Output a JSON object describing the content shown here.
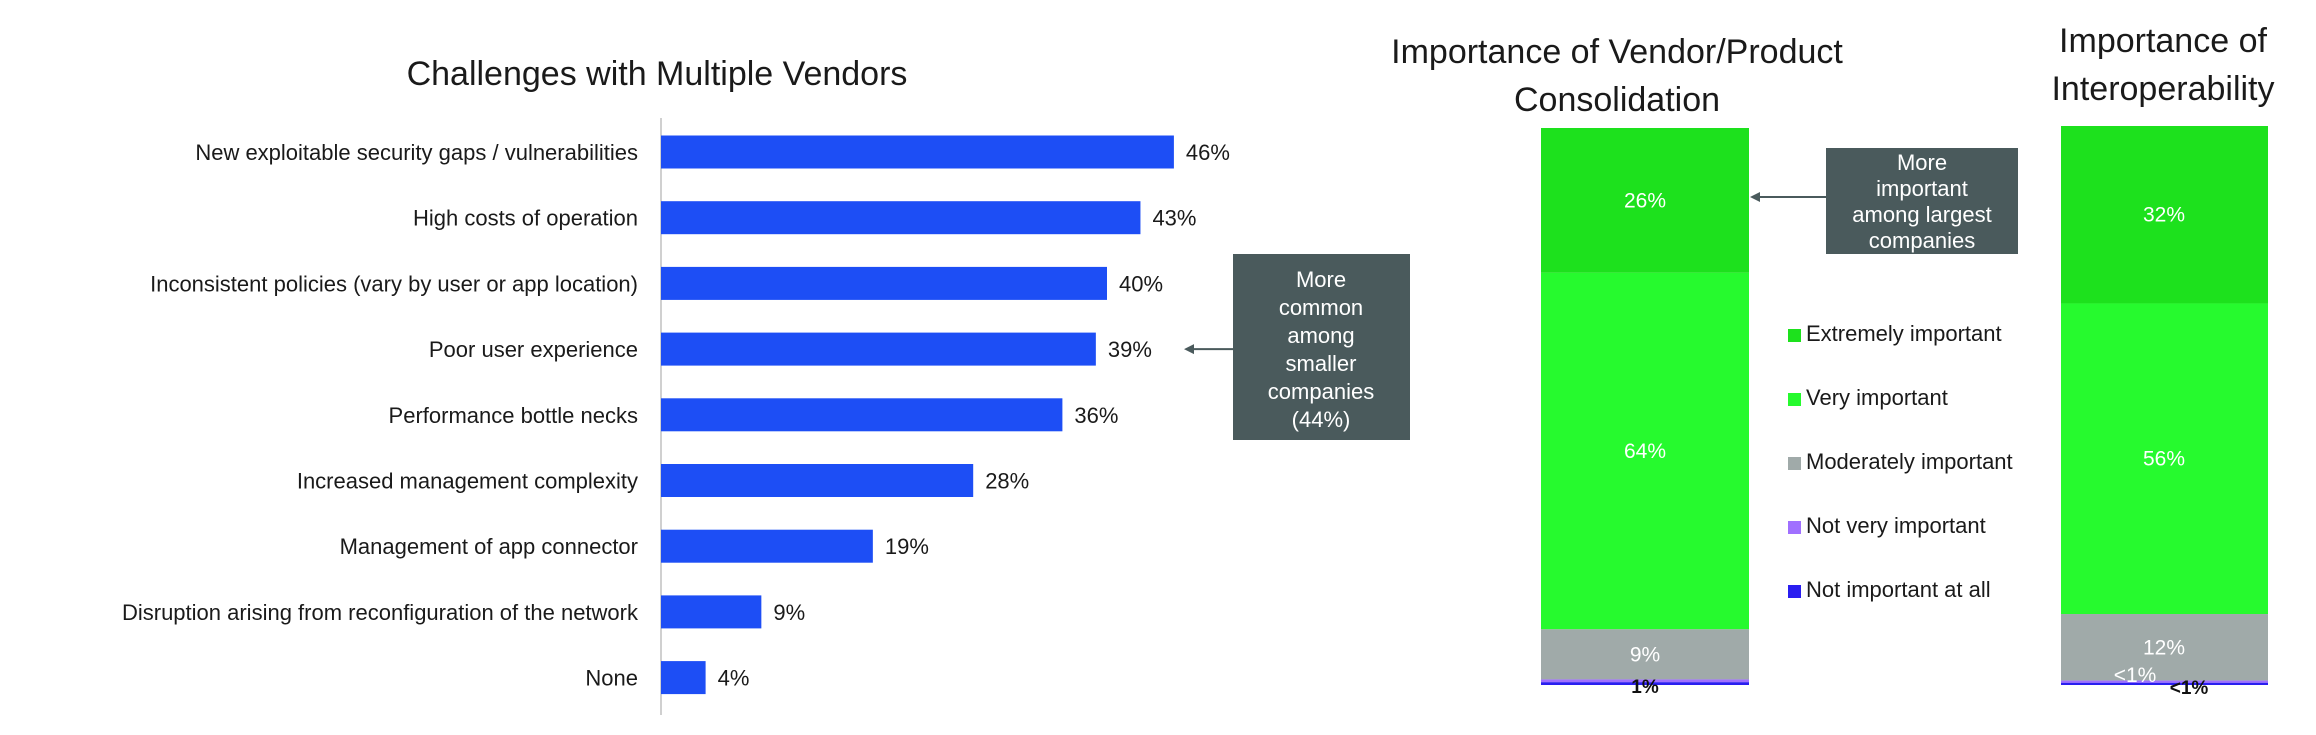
{
  "colors": {
    "bar": "#1d4ef5",
    "axis": "#d0d0d0",
    "callout_bg": "#4a5a5c",
    "arrow": "#4a5a5c",
    "extremely": "#1de11d",
    "very": "#26fa2e",
    "moderately": "#a0aaa9",
    "not_very": "#a070ff",
    "not_at_all": "#2a1ef0"
  },
  "chart_data": [
    {
      "type": "bar",
      "orientation": "horizontal",
      "title": "Challenges with Multiple Vendors",
      "categories": [
        "New exploitable security gaps / vulnerabilities",
        "High costs of operation",
        "Inconsistent policies (vary by user or app location)",
        "Poor user experience",
        "Performance bottle necks",
        "Increased management complexity",
        "Management of app connector",
        "Disruption arising from reconfiguration of the network",
        "None"
      ],
      "values": [
        46,
        43,
        40,
        39,
        36,
        28,
        19,
        9,
        4
      ],
      "value_labels": [
        "46%",
        "43%",
        "40%",
        "39%",
        "36%",
        "28%",
        "19%",
        "9%",
        "4%"
      ],
      "xlim": [
        0,
        100
      ],
      "annotation": {
        "text_lines": [
          "More",
          "common",
          "among",
          "smaller",
          "companies",
          "(44%)"
        ],
        "target_category": "Poor user experience"
      }
    },
    {
      "type": "bar",
      "stacked": true,
      "title_lines": [
        "Importance of Vendor/Product",
        "Consolidation"
      ],
      "segments": [
        {
          "name": "Extremely important",
          "value": 26,
          "label": "26%"
        },
        {
          "name": "Very important",
          "value": 64,
          "label": "64%"
        },
        {
          "name": "Moderately important",
          "value": 9,
          "label": "9%"
        },
        {
          "name": "Not very important",
          "value": 0.5,
          "label": "1%"
        },
        {
          "name": "Not important at all",
          "value": 0.5,
          "label": ""
        }
      ],
      "annotation": {
        "text_lines": [
          "More",
          "important",
          "among largest",
          "companies"
        ],
        "target_segment": "Extremely important"
      }
    },
    {
      "type": "bar",
      "stacked": true,
      "title_lines": [
        "Importance of",
        "Interoperability"
      ],
      "segments": [
        {
          "name": "Extremely important",
          "value": 32,
          "label": "32%"
        },
        {
          "name": "Very important",
          "value": 56,
          "label": "56%"
        },
        {
          "name": "Moderately important",
          "value": 12,
          "label": "12%"
        },
        {
          "name": "Not very important",
          "value": 0.4,
          "label": "<1%"
        },
        {
          "name": "Not important at all",
          "value": 0.4,
          "label": "<1%"
        }
      ]
    }
  ],
  "legend": [
    {
      "label": "Extremely important",
      "color_key": "extremely"
    },
    {
      "label": "Very important",
      "color_key": "very"
    },
    {
      "label": "Moderately important",
      "color_key": "moderately"
    },
    {
      "label": "Not very important",
      "color_key": "not_very"
    },
    {
      "label": "Not important at all",
      "color_key": "not_at_all"
    }
  ]
}
